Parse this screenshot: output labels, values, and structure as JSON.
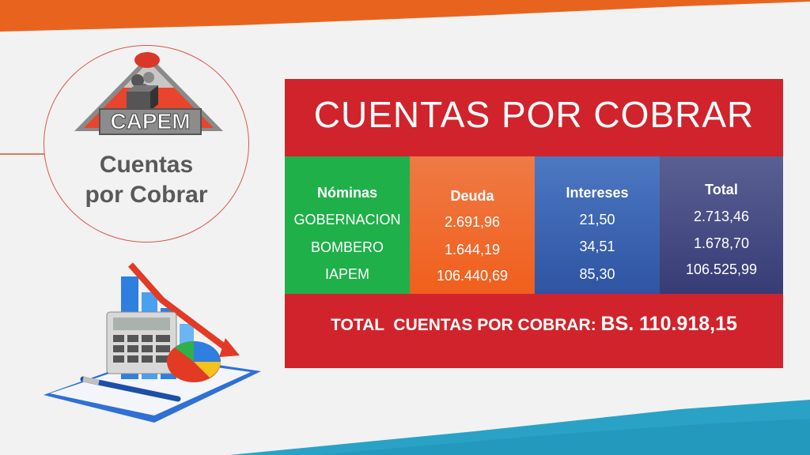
{
  "badge": {
    "logo_text": "CAPEM",
    "title_line1": "Cuentas",
    "title_line2": "por Cobrar"
  },
  "panel": {
    "title": "CUENTAS POR COBRAR",
    "columns": {
      "nominas": {
        "header": "Nóminas",
        "rows": [
          "GOBERNACION",
          "BOMBERO",
          "IAPEM"
        ]
      },
      "deuda": {
        "header": "Deuda",
        "rows": [
          "2.691,96",
          "1.644,19",
          "106.440,69"
        ]
      },
      "intereses": {
        "header": "Intereses",
        "rows": [
          "21,50",
          "34,51",
          "85,30"
        ]
      },
      "total": {
        "header": "Total",
        "rows": [
          "2.713,46",
          "1.678,70",
          "106.525,99"
        ]
      }
    },
    "total_label": "TOTAL  CUENTAS POR COBRAR: ",
    "total_amount": "BS. 110.918,15"
  },
  "colors": {
    "orange_band": "#e8641e",
    "teal_band": "#2aa2c6",
    "panel_red": "#d0232b",
    "green": "#1fb04a",
    "orange": "#f05f1c",
    "blue": "#2e54a2",
    "indigo": "#373c76"
  },
  "icons": {
    "logo": "capem-logo-icon",
    "illustration": "calculator-chart-illustration-icon"
  }
}
